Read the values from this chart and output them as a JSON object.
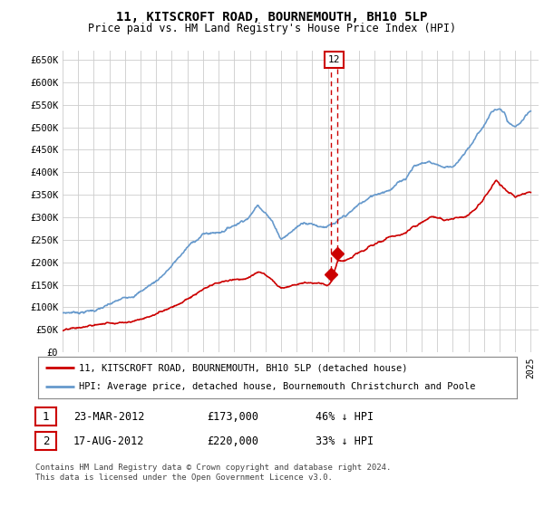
{
  "title": "11, KITSCROFT ROAD, BOURNEMOUTH, BH10 5LP",
  "subtitle": "Price paid vs. HM Land Registry's House Price Index (HPI)",
  "ylabel_ticks": [
    "£0",
    "£50K",
    "£100K",
    "£150K",
    "£200K",
    "£250K",
    "£300K",
    "£350K",
    "£400K",
    "£450K",
    "£500K",
    "£550K",
    "£600K",
    "£650K"
  ],
  "ytick_vals": [
    0,
    50000,
    100000,
    150000,
    200000,
    250000,
    300000,
    350000,
    400000,
    450000,
    500000,
    550000,
    600000,
    650000
  ],
  "ylim": [
    0,
    670000
  ],
  "xlim_start": 1995.0,
  "xlim_end": 2025.5,
  "transaction1": {
    "date_num": 2012.22,
    "price": 173000,
    "label": "1"
  },
  "transaction2": {
    "date_num": 2012.63,
    "price": 220000,
    "label": "2"
  },
  "legend_red": "11, KITSCROFT ROAD, BOURNEMOUTH, BH10 5LP (detached house)",
  "legend_blue": "HPI: Average price, detached house, Bournemouth Christchurch and Poole",
  "row1": [
    "1",
    "23-MAR-2012",
    "£173,000",
    "46% ↓ HPI"
  ],
  "row2": [
    "2",
    "17-AUG-2012",
    "£220,000",
    "33% ↓ HPI"
  ],
  "footnote": "Contains HM Land Registry data © Crown copyright and database right 2024.\nThis data is licensed under the Open Government Licence v3.0.",
  "red_color": "#cc0000",
  "blue_color": "#6699cc",
  "bg_color": "#ffffff",
  "grid_color": "#cccccc"
}
